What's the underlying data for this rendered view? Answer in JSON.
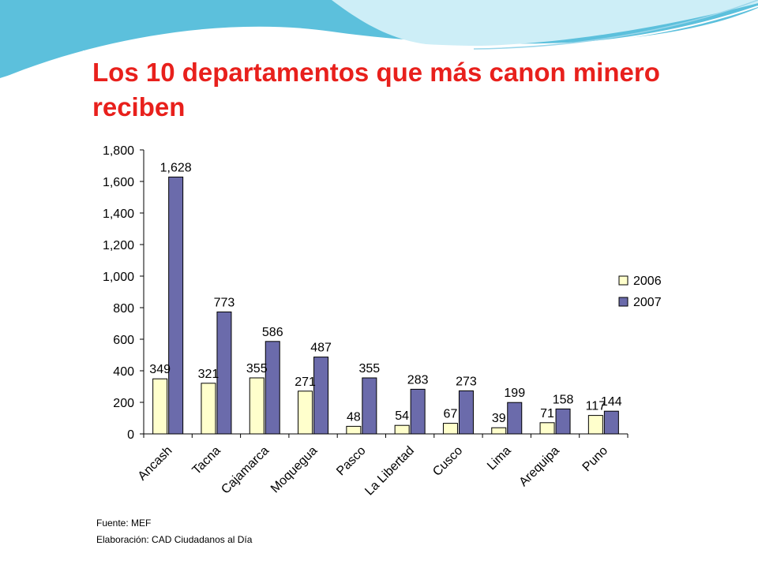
{
  "slide": {
    "title": "Los 10 departamentos que más canon minero reciben",
    "colors": {
      "title": "#e8201c",
      "wave_dark": "#4fb8d8",
      "wave_light": "#bfe6f2"
    }
  },
  "footer": {
    "source": "Fuente: MEF",
    "elaboration": "Elaboración: CAD Ciudadanos al Día"
  },
  "chart_data": {
    "type": "bar",
    "categories": [
      "Ancash",
      "Tacna",
      "Cajamarca",
      "Moquegua",
      "Pasco",
      "La Libertad",
      "Cusco",
      "Lima",
      "Arequipa",
      "Puno"
    ],
    "series": [
      {
        "name": "2006",
        "color": "#ffffcc",
        "values": [
          349,
          321,
          355,
          271,
          48,
          54,
          67,
          39,
          71,
          117
        ],
        "labels": [
          "349",
          "321",
          "355",
          "271",
          "48",
          "54",
          "67",
          "39",
          "71",
          "117"
        ]
      },
      {
        "name": "2007",
        "color": "#6b6bab",
        "values": [
          1628,
          773,
          586,
          487,
          355,
          283,
          273,
          199,
          158,
          144
        ],
        "labels": [
          "1,628",
          "773",
          "586",
          "487",
          "355",
          "283",
          "273",
          "199",
          "158",
          "144"
        ]
      }
    ],
    "ylim": [
      0,
      1800
    ],
    "yticks": [
      "0",
      "200",
      "400",
      "600",
      "800",
      "1,000",
      "1,200",
      "1,400",
      "1,600",
      "1,800"
    ],
    "legend_position": "right",
    "grid": false
  }
}
